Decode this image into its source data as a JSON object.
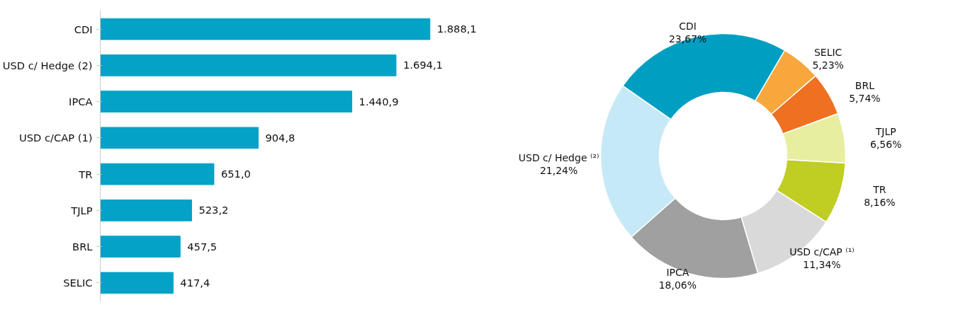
{
  "chart_data": [
    {
      "type": "bar",
      "orientation": "horizontal",
      "categories": [
        "CDI",
        "USD c/ Hedge (2)",
        "IPCA",
        "USD c/CAP (1)",
        "TR",
        "TJLP",
        "BRL",
        "SELIC"
      ],
      "values": [
        1888.1,
        1694.1,
        1440.9,
        904.8,
        651.0,
        523.2,
        457.5,
        417.4
      ],
      "value_labels": [
        "1.888,1",
        "1.694,1",
        "1.440,9",
        "904,8",
        "651,0",
        "523,2",
        "457,5",
        "417,4"
      ],
      "color": "#04a2c6",
      "grid": false
    },
    {
      "type": "donut",
      "categories": [
        "CDI",
        "SELIC",
        "BRL",
        "TJLP",
        "TR",
        "USD c/CAP ⁽¹⁾",
        "IPCA",
        "USD c/ Hedge ⁽²⁾"
      ],
      "values": [
        23.67,
        5.23,
        5.74,
        6.56,
        8.16,
        11.34,
        18.06,
        21.24
      ],
      "value_labels": [
        "23,67%",
        "5,23%",
        "5,74%",
        "6,56%",
        "8,16%",
        "11,34%",
        "18,06%",
        "21,24%"
      ],
      "colors": [
        "#009fc2",
        "#f8a73d",
        "#f07022",
        "#e8eea0",
        "#c0cd22",
        "#d9d9d9",
        "#a0a0a0",
        "#c6e9f8"
      ]
    }
  ]
}
